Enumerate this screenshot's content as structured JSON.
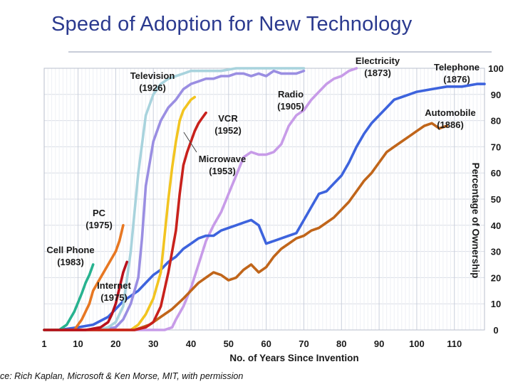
{
  "title": "Speed of Adoption for New Technology",
  "source": "ce: Rich Kaplan, Microsoft & Ken Morse, MIT, with permission",
  "chart_data": {
    "type": "line",
    "title": "Speed of Adoption for New Technology",
    "xlabel": "No. of Years Since Invention",
    "ylabel": "Percentage of Ownership",
    "xlim": [
      1,
      118
    ],
    "ylim": [
      0,
      100
    ],
    "xticks": [
      "1",
      "10",
      "20",
      "30",
      "40",
      "50",
      "60",
      "70",
      "80",
      "90",
      "100",
      "110"
    ],
    "xtick_values": [
      1,
      10,
      20,
      30,
      40,
      50,
      60,
      70,
      80,
      90,
      100,
      110
    ],
    "yticks": [
      "0",
      "10",
      "20",
      "30",
      "40",
      "50",
      "60",
      "70",
      "80",
      "90",
      "100"
    ],
    "ytick_values": [
      0,
      10,
      20,
      30,
      40,
      50,
      60,
      70,
      80,
      90,
      100
    ],
    "grid": true,
    "series": [
      {
        "name": "Electricity",
        "year": "(1873)",
        "color": "#c79be8",
        "x": [
          1,
          20,
          28,
          33,
          35,
          36,
          38,
          40,
          42,
          44,
          46,
          48,
          50,
          52,
          54,
          56,
          58,
          60,
          62,
          64,
          66,
          68,
          70,
          72,
          74,
          76,
          78,
          80,
          82,
          84
        ],
        "y": [
          0,
          0,
          0,
          0,
          1,
          4,
          9,
          16,
          25,
          34,
          40,
          45,
          52,
          59,
          66,
          68,
          67,
          67,
          68,
          71,
          78,
          82,
          84,
          88,
          91,
          94,
          96,
          97,
          99,
          100
        ]
      },
      {
        "name": "Telephone",
        "year": "(1876)",
        "color": "#3d63dd",
        "x": [
          1,
          5,
          10,
          14,
          18,
          20,
          22,
          24,
          26,
          28,
          30,
          32,
          34,
          36,
          38,
          40,
          42,
          44,
          46,
          48,
          50,
          52,
          54,
          56,
          58,
          60,
          62,
          64,
          66,
          68,
          70,
          72,
          74,
          76,
          78,
          80,
          82,
          84,
          86,
          88,
          90,
          92,
          94,
          96,
          98,
          100,
          104,
          108,
          112,
          116,
          118
        ],
        "y": [
          0,
          0,
          1,
          2,
          5,
          8,
          11,
          13,
          15,
          18,
          21,
          23,
          26,
          28,
          31,
          33,
          35,
          36,
          36,
          38,
          39,
          40,
          41,
          42,
          40,
          33,
          34,
          35,
          36,
          37,
          42,
          47,
          52,
          53,
          56,
          59,
          64,
          70,
          75,
          79,
          82,
          85,
          88,
          89,
          90,
          91,
          92,
          93,
          93,
          94,
          94
        ]
      },
      {
        "name": "Automobile",
        "year": "(1886)",
        "color": "#c0651a",
        "x": [
          1,
          25,
          27,
          29,
          32,
          35,
          38,
          40,
          42,
          44,
          46,
          48,
          50,
          52,
          54,
          56,
          58,
          60,
          62,
          64,
          66,
          68,
          70,
          72,
          74,
          76,
          78,
          80,
          82,
          84,
          86,
          88,
          90,
          92,
          94,
          96,
          98,
          100,
          102,
          104,
          106,
          108
        ],
        "y": [
          0,
          0,
          1,
          2,
          5,
          8,
          12,
          15,
          18,
          20,
          22,
          21,
          19,
          20,
          23,
          25,
          22,
          24,
          28,
          31,
          33,
          35,
          36,
          38,
          39,
          41,
          43,
          46,
          49,
          53,
          57,
          60,
          64,
          68,
          70,
          72,
          74,
          76,
          78,
          79,
          77,
          78
        ]
      },
      {
        "name": "Radio",
        "year": "(1905)",
        "color": "#9a8ee2",
        "x": [
          1,
          16,
          20,
          22,
          24,
          26,
          27,
          28,
          30,
          32,
          34,
          36,
          38,
          40,
          42,
          44,
          46,
          48,
          50,
          52,
          54,
          56,
          58,
          60,
          62,
          64,
          66,
          68,
          70
        ],
        "y": [
          0,
          0,
          1,
          4,
          10,
          20,
          35,
          55,
          72,
          80,
          85,
          88,
          92,
          94,
          95,
          96,
          96,
          97,
          97,
          98,
          98,
          97,
          98,
          97,
          99,
          98,
          98,
          98,
          99
        ]
      },
      {
        "name": "Television",
        "year": "(1926)",
        "color": "#a8d3dd",
        "x": [
          1,
          15,
          18,
          20,
          22,
          24,
          26,
          28,
          30,
          32,
          34,
          36,
          38,
          40,
          44,
          48,
          52,
          56,
          60,
          64,
          68,
          70
        ],
        "y": [
          0,
          0,
          1,
          3,
          9,
          30,
          60,
          82,
          90,
          94,
          96,
          97,
          98,
          99,
          99,
          99,
          100,
          100,
          100,
          100,
          100,
          100
        ]
      },
      {
        "name": "VCR",
        "year": "(1952)",
        "color": "#f2c420",
        "x": [
          1,
          24,
          26,
          28,
          30,
          32,
          33,
          34,
          35,
          36,
          37,
          38,
          39,
          40,
          41
        ],
        "y": [
          0,
          0,
          2,
          6,
          12,
          22,
          36,
          50,
          62,
          72,
          80,
          84,
          86,
          88,
          89
        ]
      },
      {
        "name": "Microwave",
        "year": "(1953)",
        "color": "#c8211c",
        "x": [
          1,
          25,
          28,
          30,
          32,
          34,
          36,
          37,
          38,
          39,
          40,
          41,
          42,
          43,
          44
        ],
        "y": [
          0,
          0,
          1,
          3,
          9,
          22,
          38,
          52,
          63,
          68,
          72,
          76,
          79,
          81,
          83
        ]
      },
      {
        "name": "PC",
        "year": "(1975)",
        "color": "#e77722",
        "x": [
          1,
          9,
          11,
          13,
          14,
          16,
          18,
          20,
          21,
          22
        ],
        "y": [
          0,
          0,
          4,
          10,
          15,
          20,
          25,
          30,
          34,
          40
        ]
      },
      {
        "name": "Cell Phone",
        "year": "(1983)",
        "color": "#27b28f",
        "x": [
          1,
          5,
          7,
          9,
          11,
          12,
          13,
          14
        ],
        "y": [
          0,
          0,
          2,
          7,
          14,
          18,
          21,
          25
        ]
      },
      {
        "name": "Internet",
        "year": "(1975)",
        "color": "#b8111c",
        "x": [
          1,
          12,
          14,
          16,
          17,
          18,
          19,
          20,
          21,
          22,
          23
        ],
        "y": [
          0,
          0,
          0.5,
          1,
          2,
          3,
          6,
          10,
          16,
          22,
          26
        ]
      }
    ],
    "annotations": [
      {
        "series": "Television",
        "name": "Television",
        "year": "(1926)"
      },
      {
        "series": "Electricity",
        "name": "Electricity",
        "year": "(1873)"
      },
      {
        "series": "Telephone",
        "name": "Telephone",
        "year": "(1876)"
      },
      {
        "series": "Radio",
        "name": "Radio",
        "year": "(1905)"
      },
      {
        "series": "VCR",
        "name": "VCR",
        "year": "(1952)"
      },
      {
        "series": "Automobile",
        "name": "Automobile",
        "year": "(1886)"
      },
      {
        "series": "Microwave",
        "name": "Microwave",
        "year": "(1953)"
      },
      {
        "series": "PC",
        "name": "PC",
        "year": "(1975)"
      },
      {
        "series": "Cell Phone",
        "name": "Cell Phone",
        "year": "(1983)"
      },
      {
        "series": "Internet",
        "name": "Internet",
        "year": "(1975)"
      }
    ]
  }
}
